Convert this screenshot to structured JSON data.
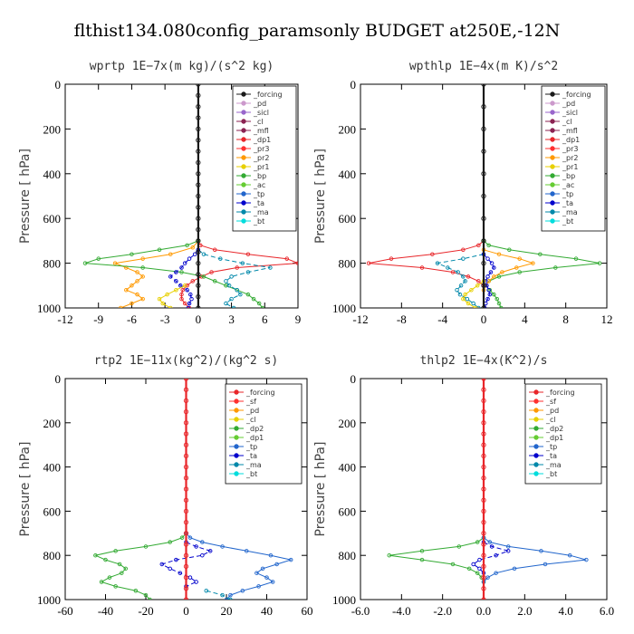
{
  "figure_title": "flthist134.080config_paramsonly  BUDGET at250E,-12N",
  "colors": {
    "_forcing": "#1a1a1a",
    "_pd": "#cc99cc",
    "_sicl": "#9966cc",
    "_cl": "#8b2252",
    "_mfl": "#8b2252",
    "_dp1": "#e8262a",
    "_pr3": "#ff3030",
    "_pr2": "#ff9900",
    "_pr1": "#e8d000",
    "_bp": "#33aa33",
    "_ac": "#66cc33",
    "_tp": "#2266cc",
    "_ta": "#0000cc",
    "_ma": "#0088aa",
    "_bt": "#00dddd",
    "_sf": "#ff3030",
    "_dp2": "#33aa33",
    "_dp1b": "#66cc33"
  },
  "chart_data": [
    {
      "type": "line",
      "title": "wprtp   1E−7x(m kg)/(s^2 kg)",
      "ylabel": "Pressure [ hPa]",
      "xlim": [
        -12,
        9
      ],
      "ylim": [
        1000,
        0
      ],
      "xticks": [
        -12,
        -9,
        -6,
        -3,
        0,
        3,
        6,
        9
      ],
      "xtick_labels": [
        "-12",
        "-9",
        "-6",
        "-3",
        "0",
        "3",
        "6",
        "9"
      ],
      "yticks": [
        0,
        200,
        400,
        600,
        800,
        1000
      ],
      "legend": [
        "_forcing",
        "_pd",
        "_sicl",
        "_cl",
        "_mfl",
        "_dp1",
        "_pr3",
        "_pr2",
        "_pr1",
        "_bp",
        "_ac",
        "_tp",
        "_ta",
        "_ma",
        "_bt"
      ],
      "legend_colors": [
        "#1a1a1a",
        "#cc99cc",
        "#9966cc",
        "#8b2252",
        "#8b2252",
        "#e8262a",
        "#ff3030",
        "#ff9900",
        "#e8d000",
        "#33aa33",
        "#66cc33",
        "#2266cc",
        "#0000cc",
        "#0088aa",
        "#00dddd"
      ],
      "legend_position": "top-right",
      "series": [
        {
          "key": "_dp1",
          "color": "#e8262a",
          "p": [
            700,
            720,
            740,
            760,
            780,
            800,
            820,
            840,
            860,
            880,
            900,
            920,
            940,
            960,
            980,
            1000
          ],
          "x": [
            0,
            0.2,
            1.5,
            4.5,
            8,
            9,
            3.5,
            1.2,
            0.3,
            -0.5,
            -1.0,
            -1.4,
            -1.5,
            -1.5,
            -1.2,
            -0.8
          ]
        },
        {
          "key": "_pr2",
          "color": "#ff9900",
          "p": [
            700,
            730,
            760,
            780,
            800,
            820,
            840,
            860,
            880,
            900,
            920,
            940,
            960,
            980,
            1000
          ],
          "x": [
            0,
            -0.5,
            -2.5,
            -5,
            -7.5,
            -6.5,
            -5.5,
            -5.0,
            -5.5,
            -6.0,
            -6.5,
            -5.5,
            -5.0,
            -6.0,
            -7.0
          ]
        },
        {
          "key": "_bp",
          "color": "#33aa33",
          "p": [
            700,
            720,
            740,
            760,
            780,
            800,
            820,
            840,
            860,
            880,
            900,
            920,
            940,
            960,
            980,
            1000
          ],
          "x": [
            0,
            -1.0,
            -3.5,
            -6,
            -9,
            -10.2,
            -5,
            -1.5,
            0.5,
            1.5,
            2.5,
            3.5,
            4.5,
            5.0,
            5.5,
            5.8
          ]
        },
        {
          "key": "_ma",
          "color": "#0088aa",
          "p": [
            740,
            760,
            780,
            800,
            820,
            840,
            860,
            880,
            900,
            920,
            940,
            960,
            980,
            1000
          ],
          "x": [
            0,
            0.5,
            2,
            4,
            6.5,
            4.5,
            3,
            2.5,
            2.8,
            3.5,
            3.8,
            3.0,
            2.5,
            3.2
          ]
        },
        {
          "key": "_ta",
          "color": "#0000cc",
          "p": [
            740,
            760,
            780,
            800,
            820,
            840,
            860,
            880,
            900,
            920,
            940,
            960,
            980,
            1000
          ],
          "x": [
            0,
            -0.3,
            -0.8,
            -1.2,
            -1.5,
            -2.0,
            -2.5,
            -2.0,
            -1.6,
            -1.0,
            -0.7,
            -0.6,
            -0.8,
            -0.9
          ]
        },
        {
          "key": "_pr1",
          "color": "#e8d000",
          "p": [
            900,
            920,
            940,
            960,
            980,
            1000
          ],
          "x": [
            -1.2,
            -2.0,
            -2.8,
            -3.5,
            -3.2,
            -2.5
          ]
        },
        {
          "key": "_forcing",
          "color": "#1a1a1a",
          "p": [
            0,
            50,
            100,
            150,
            200,
            250,
            300,
            350,
            400,
            450,
            500,
            550,
            600,
            650,
            700,
            750,
            800,
            850,
            900,
            950,
            1000
          ],
          "x": [
            0,
            0,
            0,
            0,
            0,
            0,
            0,
            0,
            0,
            0,
            0,
            0,
            0,
            0,
            0,
            0,
            0,
            0,
            0,
            0,
            0
          ]
        }
      ]
    },
    {
      "type": "line",
      "title": "wpthlp   1E−4x(m K)/s^2",
      "ylabel": "Pressure [ hPa]",
      "xlim": [
        -12,
        12
      ],
      "ylim": [
        1000,
        0
      ],
      "xticks": [
        -12,
        -8,
        -4,
        0,
        4,
        8,
        12
      ],
      "xtick_labels": [
        "-12",
        "-8",
        "-4",
        "0",
        "4",
        "8",
        "12"
      ],
      "yticks": [
        0,
        200,
        400,
        600,
        800,
        1000
      ],
      "legend": [
        "_forcing",
        "_pd",
        "_sicl",
        "_cl",
        "_mfl",
        "_dp1",
        "_pr3",
        "_pr2",
        "_pr1",
        "_bp",
        "_ac",
        "_tp",
        "_ta",
        "_ma",
        "_bt"
      ],
      "legend_colors": [
        "#1a1a1a",
        "#cc99cc",
        "#9966cc",
        "#8b2252",
        "#8b2252",
        "#e8262a",
        "#ff3030",
        "#ff9900",
        "#e8d000",
        "#33aa33",
        "#66cc33",
        "#2266cc",
        "#0000cc",
        "#0088aa",
        "#00dddd"
      ],
      "legend_position": "top-right",
      "series": [
        {
          "key": "_dp1",
          "color": "#e8262a",
          "p": [
            700,
            720,
            740,
            760,
            780,
            800,
            820,
            840,
            860,
            880,
            900
          ],
          "x": [
            0,
            -0.5,
            -2,
            -5,
            -9,
            -11.2,
            -6,
            -3,
            -1.5,
            -0.5,
            0
          ]
        },
        {
          "key": "_bp",
          "color": "#33aa33",
          "p": [
            700,
            720,
            740,
            760,
            780,
            800,
            820,
            840,
            860,
            880,
            900,
            920,
            940,
            960,
            980,
            1000
          ],
          "x": [
            0,
            0.5,
            2.5,
            5.5,
            9,
            11.3,
            7,
            3.5,
            1.5,
            0.5,
            0.2,
            0.6,
            1.0,
            1.3,
            1.5,
            1.7
          ]
        },
        {
          "key": "_pr2",
          "color": "#ff9900",
          "p": [
            740,
            760,
            780,
            800,
            820,
            840,
            860,
            880,
            900,
            920
          ],
          "x": [
            0,
            1.5,
            3.5,
            4.8,
            3.2,
            1.8,
            1.0,
            0.5,
            0.2,
            0
          ]
        },
        {
          "key": "_ma",
          "color": "#0088aa",
          "p": [
            760,
            780,
            800,
            820,
            840,
            860,
            880,
            900,
            920,
            940,
            960,
            980,
            1000
          ],
          "x": [
            0,
            -2,
            -4.5,
            -3.5,
            -2.5,
            -2,
            -1.8,
            -2.2,
            -2.6,
            -2.3,
            -1.6,
            -1.0,
            -0.5
          ]
        },
        {
          "key": "_ta",
          "color": "#0000cc",
          "p": [
            760,
            780,
            800,
            820,
            840,
            860,
            880,
            900,
            920,
            940,
            960,
            980,
            1000
          ],
          "x": [
            0,
            0.4,
            0.8,
            1.0,
            0.7,
            0.4,
            0.2,
            0.3,
            0.5,
            0.6,
            0.4,
            0.2,
            0.1
          ]
        },
        {
          "key": "_pr1",
          "color": "#e8d000",
          "p": [
            880,
            900,
            920,
            940,
            960,
            980,
            1000
          ],
          "x": [
            0,
            -0.6,
            -1.2,
            -1.8,
            -2.0,
            -1.5,
            -0.8
          ]
        },
        {
          "key": "_forcing",
          "color": "#1a1a1a",
          "p": [
            0,
            100,
            200,
            300,
            400,
            500,
            600,
            700,
            800,
            900,
            1000
          ],
          "x": [
            0,
            0,
            0,
            0,
            0,
            0,
            0,
            0,
            0,
            0,
            0
          ]
        }
      ]
    },
    {
      "type": "line",
      "title": "rtp2   1E−11x(kg^2)/(kg^2 s)",
      "ylabel": "Pressure [ hPa]",
      "xlim": [
        -60,
        60
      ],
      "ylim": [
        1000,
        0
      ],
      "xticks": [
        -60,
        -40,
        -20,
        0,
        20,
        40,
        60
      ],
      "xtick_labels": [
        "-60",
        "-40",
        "-20",
        "0",
        "20",
        "40",
        "60"
      ],
      "yticks": [
        0,
        200,
        400,
        600,
        800,
        1000
      ],
      "legend": [
        "_forcing",
        "_sf",
        "_pd",
        "_cl",
        "_dp2",
        "_dp1",
        "_tp",
        "_ta",
        "_ma",
        "_bt"
      ],
      "legend_colors": [
        "#e8262a",
        "#ff3030",
        "#ff9900",
        "#e8d000",
        "#33aa33",
        "#66cc33",
        "#2266cc",
        "#0000cc",
        "#0088aa",
        "#00dddd"
      ],
      "legend_position": "top-right",
      "series": [
        {
          "key": "_dp2",
          "color": "#33aa33",
          "p": [
            700,
            720,
            740,
            760,
            780,
            800,
            820,
            840,
            860,
            880,
            900,
            920,
            940,
            960,
            980,
            1000
          ],
          "x": [
            0,
            -2,
            -8,
            -20,
            -35,
            -45,
            -40,
            -33,
            -30,
            -32,
            -38,
            -42,
            -35,
            -25,
            -20,
            -18
          ]
        },
        {
          "key": "_tp",
          "color": "#2266cc",
          "p": [
            700,
            720,
            740,
            760,
            780,
            800,
            820,
            840,
            860,
            880,
            900,
            920,
            940,
            960,
            980,
            1000
          ],
          "x": [
            0,
            2,
            8,
            18,
            30,
            42,
            52,
            45,
            38,
            35,
            40,
            43,
            36,
            28,
            22,
            20
          ]
        },
        {
          "key": "_ta",
          "color": "#0000cc",
          "p": [
            740,
            760,
            780,
            800,
            820,
            840,
            860,
            880,
            900,
            920,
            940
          ],
          "x": [
            0,
            5,
            12,
            8,
            -5,
            -12,
            -8,
            -3,
            2,
            5,
            0
          ]
        },
        {
          "key": "_ma",
          "color": "#0088aa",
          "p": [
            960,
            980,
            1000
          ],
          "x": [
            10,
            18,
            22
          ]
        },
        {
          "key": "_forcing",
          "color": "#e8262a",
          "p": [
            0,
            50,
            100,
            150,
            200,
            250,
            300,
            350,
            400,
            450,
            500,
            550,
            600,
            650,
            700,
            750,
            800,
            850,
            900,
            950,
            1000
          ],
          "x": [
            0,
            0,
            0,
            0,
            0,
            0,
            0,
            0,
            0,
            0,
            0,
            0,
            0,
            0,
            0,
            0,
            0,
            0,
            0,
            0,
            0
          ]
        }
      ]
    },
    {
      "type": "line",
      "title": "thlp2   1E−4x(K^2)/s",
      "ylabel": "Pressure [ hPa]",
      "xlim": [
        -6,
        6
      ],
      "ylim": [
        1000,
        0
      ],
      "xticks": [
        -6,
        -4,
        -2,
        0,
        2,
        4,
        6
      ],
      "xtick_labels": [
        "-6.0",
        "-4.0",
        "-2.0",
        "0.0",
        "2.0",
        "4.0",
        "6.0"
      ],
      "yticks": [
        0,
        200,
        400,
        600,
        800,
        1000
      ],
      "legend": [
        "_forcing",
        "_sf",
        "_pd",
        "_cl",
        "_dp2",
        "_dp1",
        "_tp",
        "_ta",
        "_ma",
        "_bt"
      ],
      "legend_colors": [
        "#e8262a",
        "#ff3030",
        "#ff9900",
        "#e8d000",
        "#33aa33",
        "#66cc33",
        "#2266cc",
        "#0000cc",
        "#0088aa",
        "#00dddd"
      ],
      "legend_position": "top-right",
      "series": [
        {
          "key": "_dp2",
          "color": "#33aa33",
          "p": [
            720,
            740,
            760,
            780,
            800,
            820,
            840,
            860,
            880,
            900,
            920
          ],
          "x": [
            0,
            -0.3,
            -1.2,
            -3,
            -4.6,
            -3.0,
            -1.5,
            -0.7,
            -0.3,
            -0.1,
            0
          ]
        },
        {
          "key": "_tp",
          "color": "#2266cc",
          "p": [
            720,
            740,
            760,
            780,
            800,
            820,
            840,
            860,
            880,
            900,
            920
          ],
          "x": [
            0,
            0.3,
            1.2,
            2.8,
            4.2,
            5.0,
            3.0,
            1.5,
            0.6,
            0.2,
            0
          ]
        },
        {
          "key": "_ta",
          "color": "#0000cc",
          "p": [
            740,
            760,
            780,
            800,
            820,
            840,
            860,
            880
          ],
          "x": [
            0,
            0.4,
            1.2,
            0.6,
            -0.2,
            -0.5,
            -0.2,
            0
          ]
        },
        {
          "key": "_forcing",
          "color": "#e8262a",
          "p": [
            0,
            50,
            100,
            150,
            200,
            250,
            300,
            350,
            400,
            450,
            500,
            550,
            600,
            650,
            700,
            750,
            800,
            850,
            900,
            950,
            1000
          ],
          "x": [
            0,
            0,
            0,
            0,
            0,
            0,
            0,
            0,
            0,
            0,
            0,
            0,
            0,
            0,
            0,
            0,
            0,
            0,
            0,
            0,
            0
          ]
        }
      ]
    }
  ]
}
